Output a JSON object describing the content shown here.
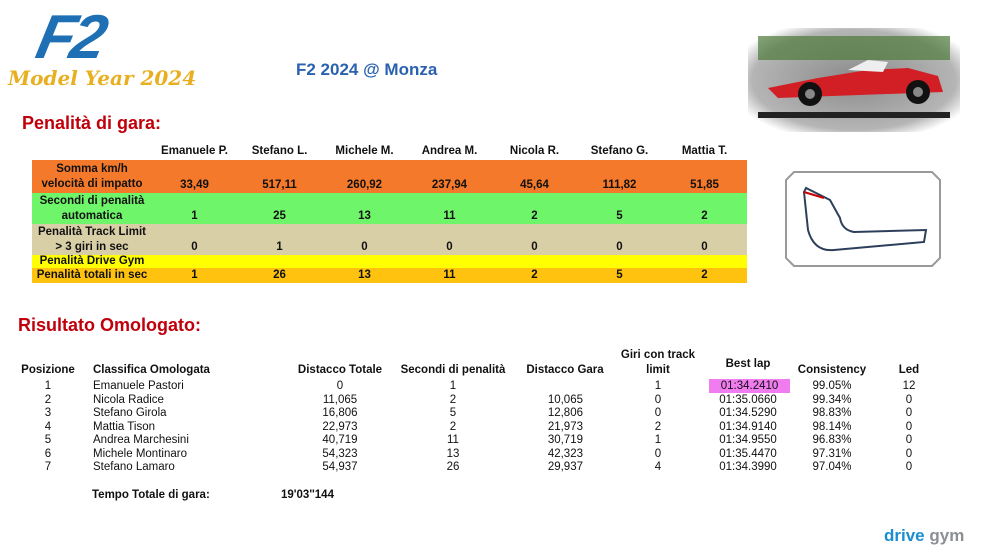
{
  "logo": {
    "text": "F2",
    "subtitle": "Model Year 2024"
  },
  "title": "F2 2024 @ Monza",
  "penalties": {
    "heading": "Penalità di gara:",
    "columns": [
      "Emanuele P.",
      "Stefano L.",
      "Michele M.",
      "Andrea M.",
      "Nicola R.",
      "Stefano G.",
      "Mattia T."
    ],
    "rows": [
      {
        "label": "Somma km/h velocità di impatto",
        "color": "#f4792a",
        "values": [
          "33,49",
          "517,11",
          "260,92",
          "237,94",
          "45,64",
          "111,82",
          "51,85"
        ]
      },
      {
        "label": "Secondi di penalità automatica",
        "color": "#6ff56a",
        "values": [
          "1",
          "25",
          "13",
          "11",
          "2",
          "5",
          "2"
        ]
      },
      {
        "label": "Penalità Track Limit > 3 giri in sec",
        "color": "#d8cfa6",
        "values": [
          "0",
          "1",
          "0",
          "0",
          "0",
          "0",
          "0"
        ]
      },
      {
        "label": "Penalità Drive Gym",
        "color": "#ffff00"
      },
      {
        "label": "Penalità totali in sec",
        "color": "#ffc20e",
        "values": [
          "1",
          "26",
          "13",
          "11",
          "2",
          "5",
          "2"
        ]
      }
    ]
  },
  "results": {
    "heading": "Risultato Omologato:",
    "columns": [
      "Posizione",
      "Classifica Omologata",
      "Distacco Totale",
      "Secondi di penalità",
      "Distacco Gara",
      "Giri con track limit",
      "Best lap",
      "Consistency",
      "Led"
    ],
    "rows": [
      [
        "1",
        "Emanuele Pastori",
        "0",
        "1",
        null,
        "1",
        "01:34.2410",
        "99.05%",
        "12"
      ],
      [
        "2",
        "Nicola Radice",
        "11,065",
        "2",
        "10,065",
        "0",
        "01:35.0660",
        "99.34%",
        "0"
      ],
      [
        "3",
        "Stefano Girola",
        "16,806",
        "5",
        "12,806",
        "0",
        "01:34.5290",
        "98.83%",
        "0"
      ],
      [
        "4",
        "Mattia Tison",
        "22,973",
        "2",
        "21,973",
        "2",
        "01:34.9140",
        "98.14%",
        "0"
      ],
      [
        "5",
        "Andrea Marchesini",
        "40,719",
        "11",
        "30,719",
        "1",
        "01:34.9550",
        "96.83%",
        "0"
      ],
      [
        "6",
        "Michele Montinaro",
        "54,323",
        "13",
        "42,323",
        "0",
        "01:35.4470",
        "97.31%",
        "0"
      ],
      [
        "7",
        "Stefano Lamaro",
        "54,937",
        "26",
        "29,937",
        "4",
        "01:34.3990",
        "97.04%",
        "0"
      ]
    ]
  },
  "total": {
    "label": "Tempo Totale di gara:",
    "value": "19'03''144"
  },
  "brand": {
    "drive": "drive",
    "gym": "gym"
  }
}
